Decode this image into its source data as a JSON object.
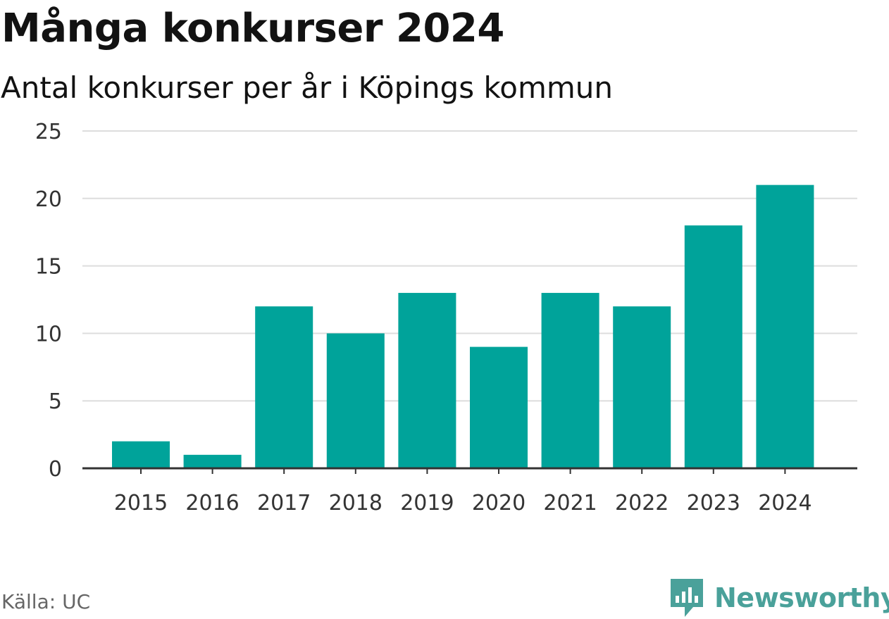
{
  "header": {
    "title": "Många konkurser 2024",
    "subtitle": "Antal konkurser per år i Köpings kommun"
  },
  "footer": {
    "source": "Källa: UC",
    "brand": "Newsworthy",
    "brand_icon": "bar-chart-speech-bubble-icon"
  },
  "colors": {
    "bar": "#00a39a",
    "grid": "#dddddd",
    "axis": "#333333",
    "tick_text": "#333333",
    "brand": "#4aa19a"
  },
  "chart_data": {
    "type": "bar",
    "title": "Många konkurser 2024",
    "subtitle": "Antal konkurser per år i Köpings kommun",
    "categories": [
      "2015",
      "2016",
      "2017",
      "2018",
      "2019",
      "2020",
      "2021",
      "2022",
      "2023",
      "2024"
    ],
    "values": [
      2,
      1,
      12,
      10,
      13,
      9,
      13,
      12,
      18,
      21
    ],
    "ylim": [
      0,
      25
    ],
    "yticks": [
      0,
      5,
      10,
      15,
      20,
      25
    ],
    "xlabel": "",
    "ylabel": "",
    "grid": true,
    "legend": "none"
  }
}
